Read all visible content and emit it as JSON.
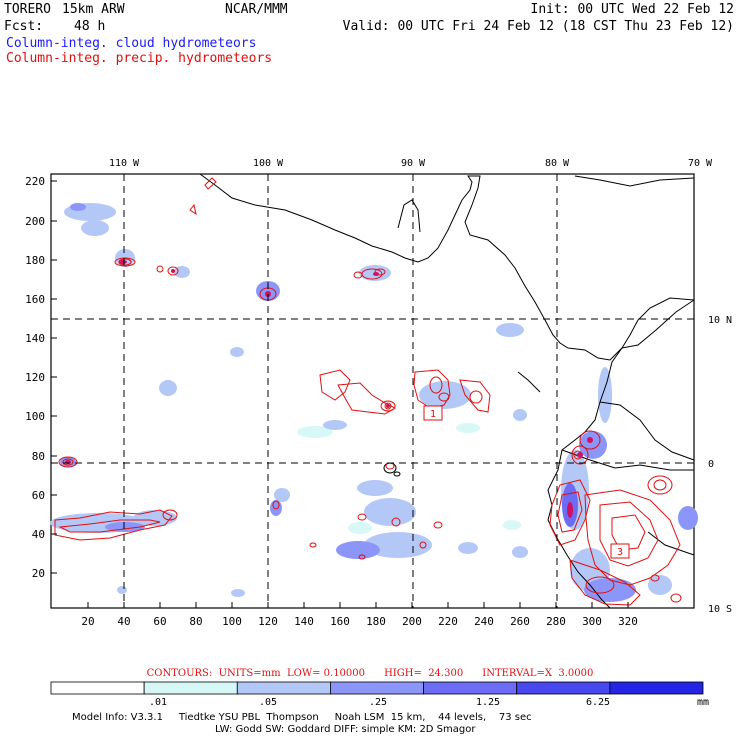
{
  "header": {
    "model": "TORERO",
    "resolution": "15km ARW",
    "org": "NCAR/MMM",
    "init": "Init: 00 UTC Wed 22 Feb 12",
    "fcst_label": "Fcst:",
    "fcst_value": "48 h",
    "valid": "Valid: 00 UTC Fri 24 Feb 12 (18 CST Thu 23 Feb 12)",
    "field1": "Column-integ. cloud hydrometeors",
    "field2": "Column-integ. precip. hydrometeors"
  },
  "map": {
    "lon_labels": [
      "110 W",
      "100 W",
      "90 W",
      "80 W",
      "70 W"
    ],
    "lat_labels": [
      "10 N",
      "0",
      "10 S"
    ],
    "y_ticks": [
      "220",
      "200",
      "180",
      "160",
      "140",
      "120",
      "100",
      "80",
      "60",
      "40",
      "20"
    ],
    "x_ticks": [
      "20",
      "40",
      "60",
      "80",
      "100",
      "120",
      "140",
      "160",
      "180",
      "200",
      "220",
      "240",
      "260",
      "280",
      "300",
      "320"
    ],
    "box_labels": [
      "1",
      "3"
    ]
  },
  "contour_info": "CONTOURS:  UNITS=mm  LOW= 0.10000      HIGH=  24.300      INTERVAL=X  3.0000",
  "colorbar": {
    "labels": [
      ".01",
      ".05",
      ".25",
      "1.25",
      "6.25"
    ],
    "units": "mm",
    "colors": [
      "#ffffff",
      "#d8f8f8",
      "#b4c8f8",
      "#8c96f8",
      "#6c6cf4",
      "#4848ee",
      "#2424e6"
    ]
  },
  "footer": {
    "line1": "Model Info: V3.3.1     Tiedtke YSU PBL  Thompson     Noah LSM  15 km,    44 levels,    73 sec",
    "line2": "LW: Godd SW: Goddard DIFF: simple KM: 2D Smagor"
  }
}
